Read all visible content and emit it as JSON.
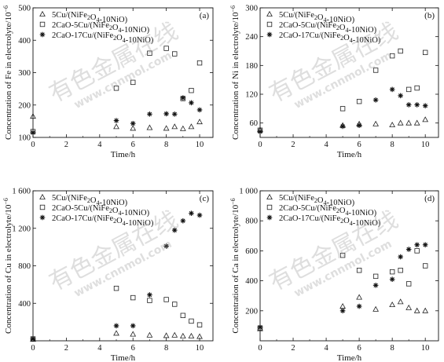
{
  "chart_data": [
    {
      "type": "scatter",
      "panel_label": "(a)",
      "xlabel": "Time/h",
      "ylabel_parts": [
        "Concentration of Fe in electrolyte/10",
        "−6"
      ],
      "xlim": [
        0,
        10.8
      ],
      "ylim": [
        100,
        500
      ],
      "xticks": [
        0,
        2,
        4,
        6,
        8,
        10
      ],
      "yticks": [
        100,
        200,
        300,
        400,
        500
      ],
      "ytick_labels": [
        "100",
        "200",
        "300",
        "400",
        "500"
      ],
      "legend_position": "top-left",
      "series": [
        {
          "name": "5Cu/(NiFe2O4-10NiO)",
          "marker": "triangle",
          "points": [
            [
              0,
              165
            ],
            [
              5,
              133
            ],
            [
              6,
              128
            ],
            [
              7,
              130
            ],
            [
              8,
              128
            ],
            [
              8.5,
              133
            ],
            [
              9,
              127
            ],
            [
              9.5,
              133
            ],
            [
              10,
              148
            ]
          ]
        },
        {
          "name": "2CaO-5Cu/(NiFe2O4-10NiO)",
          "marker": "square",
          "points": [
            [
              0,
              118
            ],
            [
              5,
              252
            ],
            [
              6,
              270
            ],
            [
              7,
              360
            ],
            [
              8,
              375
            ],
            [
              8.5,
              358
            ],
            [
              9,
              220
            ],
            [
              9.5,
              245
            ],
            [
              10,
              330
            ]
          ]
        },
        {
          "name": "2CaO-17Cu/(NiFe2O4-10NiO)",
          "marker": "star",
          "points": [
            [
              0,
              115
            ],
            [
              5,
              152
            ],
            [
              6,
              143
            ],
            [
              7,
              172
            ],
            [
              8,
              173
            ],
            [
              8.5,
              172
            ],
            [
              9,
              222
            ],
            [
              9.5,
              207
            ],
            [
              10,
              185
            ]
          ]
        }
      ]
    },
    {
      "type": "scatter",
      "panel_label": "(b)",
      "xlabel": "Time/h",
      "ylabel_parts": [
        "Concentration of Ni in electrolyte/10",
        "−6"
      ],
      "xlim": [
        0,
        10.8
      ],
      "ylim": [
        30,
        300
      ],
      "xticks": [
        0,
        2,
        4,
        6,
        8,
        10
      ],
      "yticks": [
        60,
        120,
        180,
        240,
        300
      ],
      "ytick_labels": [
        "60",
        "120",
        "180",
        "240",
        "300"
      ],
      "legend_position": "top-left",
      "series": [
        {
          "name": "5Cu/(NiFe2O4-10NiO)",
          "marker": "triangle",
          "points": [
            [
              0,
              46
            ],
            [
              5,
              55
            ],
            [
              6,
              58
            ],
            [
              7,
              58
            ],
            [
              8,
              56
            ],
            [
              8.5,
              60
            ],
            [
              9,
              60
            ],
            [
              9.5,
              60
            ],
            [
              10,
              67
            ]
          ]
        },
        {
          "name": "2CaO-5Cu/(NiFe2O4-10NiO)",
          "marker": "square",
          "points": [
            [
              0,
              45
            ],
            [
              5,
              90
            ],
            [
              6,
              105
            ],
            [
              7,
              170
            ],
            [
              8,
              200
            ],
            [
              8.5,
              210
            ],
            [
              9,
              130
            ],
            [
              9.5,
              133
            ],
            [
              10,
              207
            ]
          ]
        },
        {
          "name": "2CaO-17Cu/(NiFe2O4-10NiO)",
          "marker": "star",
          "points": [
            [
              0,
              42
            ],
            [
              5,
              53
            ],
            [
              6,
              55
            ],
            [
              7,
              108
            ],
            [
              8,
              130
            ],
            [
              8.5,
              117
            ],
            [
              9,
              98
            ],
            [
              9.5,
              98
            ],
            [
              10,
              96
            ]
          ]
        }
      ]
    },
    {
      "type": "scatter",
      "panel_label": "(c)",
      "xlabel": "Time/h",
      "ylabel_parts": [
        "Concentration of Cu in electrolyte/10",
        "−6"
      ],
      "xlim": [
        0,
        10.8
      ],
      "ylim": [
        0,
        1600
      ],
      "xticks": [
        0,
        2,
        4,
        6,
        8,
        10
      ],
      "yticks": [
        400,
        800,
        1200,
        1600
      ],
      "ytick_labels": [
        "400",
        "800",
        "1 200",
        "1 600"
      ],
      "legend_position": "top-left",
      "series": [
        {
          "name": "5Cu/(NiFe2O4-10NiO)",
          "marker": "triangle",
          "points": [
            [
              0,
              15
            ],
            [
              5,
              80
            ],
            [
              6,
              70
            ],
            [
              7,
              60
            ],
            [
              8,
              55
            ],
            [
              8.5,
              60
            ],
            [
              9,
              50
            ],
            [
              9.5,
              50
            ],
            [
              10,
              45
            ]
          ]
        },
        {
          "name": "2CaO-5Cu/(NiFe2O4-10NiO)",
          "marker": "square",
          "points": [
            [
              0,
              20
            ],
            [
              5,
              560
            ],
            [
              6,
              460
            ],
            [
              7,
              430
            ],
            [
              8,
              440
            ],
            [
              8.5,
              390
            ],
            [
              9,
              270
            ],
            [
              9.5,
              210
            ],
            [
              10,
              170
            ]
          ]
        },
        {
          "name": "2CaO-17Cu/(NiFe2O4-10NiO)",
          "marker": "star",
          "points": [
            [
              0,
              20
            ],
            [
              5,
              160
            ],
            [
              6,
              160
            ],
            [
              7,
              490
            ],
            [
              8,
              1010
            ],
            [
              8.5,
              1180
            ],
            [
              9,
              1280
            ],
            [
              9.5,
              1360
            ],
            [
              10,
              1340
            ]
          ]
        }
      ]
    },
    {
      "type": "scatter",
      "panel_label": "(d)",
      "xlabel": "Time/h",
      "ylabel_parts": [
        "Concentration of Ca in electrolyte/10",
        "−6"
      ],
      "xlim": [
        0,
        10.8
      ],
      "ylim": [
        0,
        1000
      ],
      "xticks": [
        0,
        2,
        4,
        6,
        8,
        10
      ],
      "yticks": [
        200,
        400,
        600,
        800,
        1000
      ],
      "ytick_labels": [
        "200",
        "400",
        "600",
        "800",
        "1 000"
      ],
      "legend_position": "top-left",
      "series": [
        {
          "name": "5Cu/(NiFe2O4-10NiO)",
          "marker": "triangle",
          "points": [
            [
              0,
              80
            ],
            [
              5,
              230
            ],
            [
              6,
              290
            ],
            [
              7,
              210
            ],
            [
              8,
              240
            ],
            [
              8.5,
              260
            ],
            [
              9,
              220
            ],
            [
              9.5,
              200
            ],
            [
              10,
              200
            ]
          ]
        },
        {
          "name": "2CaO-5Cu/(NiFe2O4-10NiO)",
          "marker": "square",
          "points": [
            [
              0,
              85
            ],
            [
              5,
              570
            ],
            [
              6,
              470
            ],
            [
              7,
              430
            ],
            [
              8,
              460
            ],
            [
              8.5,
              470
            ],
            [
              9,
              380
            ],
            [
              9.5,
              600
            ],
            [
              10,
              500
            ]
          ]
        },
        {
          "name": "2CaO-17Cu/(NiFe2O4-10NiO)",
          "marker": "star",
          "points": [
            [
              0,
              90
            ],
            [
              5,
              200
            ],
            [
              6,
              230
            ],
            [
              7,
              370
            ],
            [
              8,
              410
            ],
            [
              8.5,
              560
            ],
            [
              9,
              610
            ],
            [
              9.5,
              640
            ],
            [
              10,
              640
            ]
          ]
        }
      ]
    }
  ],
  "watermark": {
    "chinese": "有色金属在线",
    "url": "www.cnnmol.com"
  }
}
